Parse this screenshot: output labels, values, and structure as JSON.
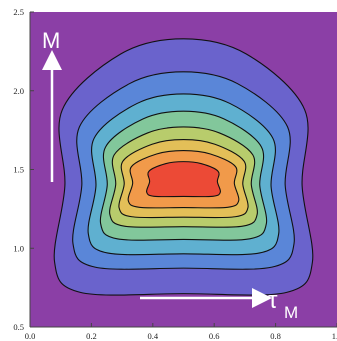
{
  "chart_data": {
    "type": "contour",
    "x_axis": {
      "range": [
        0.0,
        1.0
      ],
      "ticks": [
        0.0,
        0.2,
        0.4,
        0.6,
        0.8,
        1.0
      ],
      "tick_labels": [
        "0.0",
        "0.2",
        "0.4",
        "0.6",
        "0.8",
        "1.0"
      ]
    },
    "y_axis": {
      "range": [
        0.5,
        2.5
      ],
      "ticks": [
        0.5,
        1.0,
        1.5,
        2.0,
        2.5
      ],
      "tick_labels": [
        "0.5",
        "1.0",
        "1.5",
        "2.0",
        "2.5"
      ]
    },
    "annotations": {
      "y_arrow_label": "M",
      "x_arrow_label_main": "τ",
      "x_arrow_label_sub": "M"
    },
    "background_color": "#8b3fa6",
    "contour_lines": [
      {
        "level": 1,
        "color": "#6a63cc",
        "top": 2.33,
        "bottom": 0.72,
        "x_left": 0.08,
        "x_right": 0.92
      },
      {
        "level": 2,
        "color": "#5a86d8",
        "top": 2.12,
        "bottom": 0.88,
        "x_left": 0.14,
        "x_right": 0.86
      },
      {
        "level": 3,
        "color": "#5fb0d0",
        "top": 1.98,
        "bottom": 0.97,
        "x_left": 0.19,
        "x_right": 0.81
      },
      {
        "level": 4,
        "color": "#82c79b",
        "top": 1.87,
        "bottom": 1.06,
        "x_left": 0.23,
        "x_right": 0.77
      },
      {
        "level": 5,
        "color": "#b8cc6c",
        "top": 1.77,
        "bottom": 1.14,
        "x_left": 0.26,
        "x_right": 0.74
      },
      {
        "level": 6,
        "color": "#e3bf58",
        "top": 1.69,
        "bottom": 1.2,
        "x_left": 0.29,
        "x_right": 0.71
      },
      {
        "level": 7,
        "color": "#f19a4a",
        "top": 1.62,
        "bottom": 1.26,
        "x_left": 0.32,
        "x_right": 0.68
      },
      {
        "level": 8,
        "color": "#ec4a36",
        "top": 1.55,
        "bottom": 1.33,
        "x_left": 0.38,
        "x_right": 0.62
      }
    ],
    "grid": false
  }
}
